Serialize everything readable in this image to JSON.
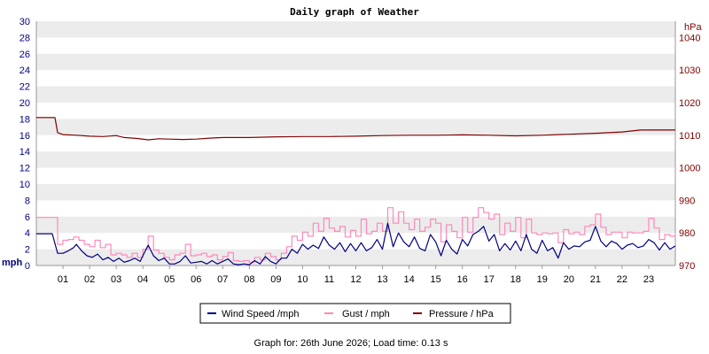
{
  "chart_data": {
    "type": "line",
    "title": "Daily graph of Weather",
    "left_axis": {
      "unit": "mph",
      "ylim": [
        0,
        30
      ],
      "ticks": [
        0,
        2,
        4,
        6,
        8,
        10,
        12,
        14,
        16,
        18,
        20,
        22,
        24,
        26,
        28,
        30
      ]
    },
    "right_axis": {
      "unit": "hPa",
      "ylim": [
        970,
        1045
      ],
      "ticks": [
        970,
        980,
        990,
        1000,
        1010,
        1020,
        1030,
        1040
      ]
    },
    "x_axis": {
      "range_hours": [
        0,
        24
      ],
      "tick_labels": [
        "01",
        "02",
        "03",
        "04",
        "05",
        "06",
        "07",
        "08",
        "09",
        "10",
        "11",
        "12",
        "13",
        "14",
        "15",
        "16",
        "17",
        "18",
        "19",
        "20",
        "21",
        "22",
        "23"
      ]
    },
    "grid": "alternating horizontal bands",
    "legend_position": "bottom",
    "series": [
      {
        "name": "Wind Speed /mph",
        "axis": "left",
        "color": "#000080",
        "points": [
          [
            0,
            3.9
          ],
          [
            0.6,
            3.9
          ],
          [
            0.8,
            1.5
          ],
          [
            1.0,
            1.5
          ],
          [
            1.2,
            1.8
          ],
          [
            1.4,
            2.2
          ],
          [
            1.5,
            2.6
          ],
          [
            1.7,
            1.8
          ],
          [
            1.9,
            1.2
          ],
          [
            2.1,
            1.0
          ],
          [
            2.3,
            1.4
          ],
          [
            2.5,
            0.7
          ],
          [
            2.7,
            1.0
          ],
          [
            2.9,
            0.5
          ],
          [
            3.1,
            0.9
          ],
          [
            3.3,
            0.4
          ],
          [
            3.5,
            0.6
          ],
          [
            3.7,
            0.9
          ],
          [
            3.9,
            0.5
          ],
          [
            4.0,
            1.2
          ],
          [
            4.2,
            2.5
          ],
          [
            4.4,
            1.2
          ],
          [
            4.6,
            0.6
          ],
          [
            4.8,
            0.9
          ],
          [
            5.0,
            0.2
          ],
          [
            5.2,
            0.2
          ],
          [
            5.4,
            0.5
          ],
          [
            5.6,
            1.2
          ],
          [
            5.8,
            0.3
          ],
          [
            6.0,
            0.4
          ],
          [
            6.2,
            0.5
          ],
          [
            6.4,
            0.2
          ],
          [
            6.6,
            0.6
          ],
          [
            6.8,
            0.2
          ],
          [
            7.0,
            0.5
          ],
          [
            7.2,
            0.8
          ],
          [
            7.4,
            0.2
          ],
          [
            7.6,
            0.1
          ],
          [
            7.8,
            0.2
          ],
          [
            8.0,
            0.1
          ],
          [
            8.2,
            0.6
          ],
          [
            8.4,
            0.2
          ],
          [
            8.6,
            1.1
          ],
          [
            8.8,
            0.5
          ],
          [
            9.0,
            0.2
          ],
          [
            9.2,
            0.9
          ],
          [
            9.4,
            0.9
          ],
          [
            9.6,
            2.0
          ],
          [
            9.8,
            1.5
          ],
          [
            10.0,
            2.6
          ],
          [
            10.2,
            2.0
          ],
          [
            10.4,
            2.5
          ],
          [
            10.6,
            2.1
          ],
          [
            10.8,
            3.5
          ],
          [
            11.0,
            2.5
          ],
          [
            11.2,
            2.0
          ],
          [
            11.4,
            2.8
          ],
          [
            11.6,
            1.7
          ],
          [
            11.8,
            2.7
          ],
          [
            12.0,
            1.8
          ],
          [
            12.2,
            2.8
          ],
          [
            12.4,
            1.8
          ],
          [
            12.6,
            2.2
          ],
          [
            12.8,
            3.2
          ],
          [
            13.0,
            2.0
          ],
          [
            13.2,
            5.2
          ],
          [
            13.4,
            2.3
          ],
          [
            13.6,
            4.0
          ],
          [
            13.8,
            2.9
          ],
          [
            14.0,
            2.3
          ],
          [
            14.2,
            3.5
          ],
          [
            14.4,
            2.1
          ],
          [
            14.6,
            1.8
          ],
          [
            14.8,
            3.8
          ],
          [
            15.0,
            2.9
          ],
          [
            15.2,
            1.2
          ],
          [
            15.4,
            3.1
          ],
          [
            15.6,
            2.0
          ],
          [
            15.8,
            1.4
          ],
          [
            16.0,
            3.2
          ],
          [
            16.2,
            2.4
          ],
          [
            16.4,
            3.8
          ],
          [
            16.6,
            4.2
          ],
          [
            16.8,
            4.8
          ],
          [
            17.0,
            3.0
          ],
          [
            17.2,
            3.8
          ],
          [
            17.4,
            1.8
          ],
          [
            17.6,
            2.7
          ],
          [
            17.8,
            1.9
          ],
          [
            18.0,
            3.0
          ],
          [
            18.2,
            1.8
          ],
          [
            18.4,
            3.8
          ],
          [
            18.6,
            2.0
          ],
          [
            18.8,
            1.5
          ],
          [
            19.0,
            3.1
          ],
          [
            19.2,
            1.8
          ],
          [
            19.4,
            2.2
          ],
          [
            19.6,
            0.9
          ],
          [
            19.8,
            2.8
          ],
          [
            20.0,
            2.0
          ],
          [
            20.2,
            2.4
          ],
          [
            20.4,
            2.3
          ],
          [
            20.6,
            2.9
          ],
          [
            20.8,
            3.1
          ],
          [
            21.0,
            4.8
          ],
          [
            21.2,
            3.0
          ],
          [
            21.4,
            2.3
          ],
          [
            21.6,
            3.0
          ],
          [
            21.8,
            2.7
          ],
          [
            22.0,
            2.0
          ],
          [
            22.2,
            2.5
          ],
          [
            22.4,
            2.7
          ],
          [
            22.6,
            2.2
          ],
          [
            22.8,
            2.4
          ],
          [
            23.0,
            3.2
          ],
          [
            23.2,
            2.8
          ],
          [
            23.4,
            1.9
          ],
          [
            23.6,
            2.8
          ],
          [
            23.8,
            2.0
          ],
          [
            24.0,
            2.4
          ]
        ]
      },
      {
        "name": "Gust / mph",
        "axis": "left",
        "color": "#ff88bb",
        "points": [
          [
            0,
            5.9
          ],
          [
            0.6,
            5.9
          ],
          [
            0.8,
            2.6
          ],
          [
            1.0,
            3.1
          ],
          [
            1.2,
            3.2
          ],
          [
            1.4,
            3.5
          ],
          [
            1.6,
            3.1
          ],
          [
            1.8,
            2.6
          ],
          [
            2.0,
            2.3
          ],
          [
            2.2,
            3.1
          ],
          [
            2.4,
            2.2
          ],
          [
            2.6,
            2.6
          ],
          [
            2.8,
            1.3
          ],
          [
            3.0,
            1.5
          ],
          [
            3.2,
            1.3
          ],
          [
            3.4,
            1.0
          ],
          [
            3.6,
            1.5
          ],
          [
            3.8,
            1.0
          ],
          [
            4.0,
            2.0
          ],
          [
            4.2,
            3.6
          ],
          [
            4.4,
            1.9
          ],
          [
            4.6,
            1.5
          ],
          [
            4.8,
            1.0
          ],
          [
            5.0,
            0.7
          ],
          [
            5.2,
            1.3
          ],
          [
            5.4,
            1.5
          ],
          [
            5.6,
            2.6
          ],
          [
            5.8,
            1.2
          ],
          [
            6.0,
            1.3
          ],
          [
            6.2,
            1.5
          ],
          [
            6.4,
            1.1
          ],
          [
            6.6,
            1.3
          ],
          [
            6.8,
            0.7
          ],
          [
            7.0,
            1.1
          ],
          [
            7.2,
            1.6
          ],
          [
            7.4,
            0.6
          ],
          [
            7.6,
            0.5
          ],
          [
            7.8,
            0.6
          ],
          [
            8.0,
            0.4
          ],
          [
            8.2,
            1.0
          ],
          [
            8.4,
            0.7
          ],
          [
            8.6,
            1.5
          ],
          [
            8.8,
            1.1
          ],
          [
            9.0,
            0.7
          ],
          [
            9.2,
            1.5
          ],
          [
            9.4,
            2.3
          ],
          [
            9.6,
            3.6
          ],
          [
            9.8,
            3.1
          ],
          [
            10.0,
            4.1
          ],
          [
            10.2,
            3.6
          ],
          [
            10.4,
            5.2
          ],
          [
            10.6,
            4.2
          ],
          [
            10.8,
            5.8
          ],
          [
            11.0,
            4.6
          ],
          [
            11.2,
            4.2
          ],
          [
            11.4,
            4.8
          ],
          [
            11.6,
            3.5
          ],
          [
            11.8,
            4.3
          ],
          [
            12.0,
            3.6
          ],
          [
            12.2,
            5.7
          ],
          [
            12.4,
            3.9
          ],
          [
            12.6,
            4.2
          ],
          [
            12.8,
            5.2
          ],
          [
            13.0,
            4.2
          ],
          [
            13.2,
            7.1
          ],
          [
            13.4,
            5.2
          ],
          [
            13.6,
            6.6
          ],
          [
            13.8,
            5.2
          ],
          [
            14.0,
            4.4
          ],
          [
            14.2,
            5.7
          ],
          [
            14.4,
            4.2
          ],
          [
            14.6,
            4.7
          ],
          [
            14.8,
            5.7
          ],
          [
            15.0,
            5.2
          ],
          [
            15.2,
            2.9
          ],
          [
            15.4,
            5.0
          ],
          [
            15.6,
            4.2
          ],
          [
            15.8,
            3.4
          ],
          [
            16.0,
            5.9
          ],
          [
            16.2,
            4.1
          ],
          [
            16.4,
            5.9
          ],
          [
            16.6,
            7.1
          ],
          [
            16.8,
            6.5
          ],
          [
            17.0,
            5.7
          ],
          [
            17.2,
            6.3
          ],
          [
            17.4,
            3.8
          ],
          [
            17.6,
            5.2
          ],
          [
            17.8,
            4.2
          ],
          [
            18.0,
            5.9
          ],
          [
            18.2,
            3.4
          ],
          [
            18.4,
            5.7
          ],
          [
            18.6,
            4.0
          ],
          [
            18.8,
            3.8
          ],
          [
            19.0,
            4.0
          ],
          [
            19.2,
            3.9
          ],
          [
            19.4,
            4.0
          ],
          [
            19.6,
            2.8
          ],
          [
            19.8,
            4.4
          ],
          [
            20.0,
            3.9
          ],
          [
            20.2,
            4.1
          ],
          [
            20.4,
            3.8
          ],
          [
            20.6,
            4.8
          ],
          [
            20.8,
            5.0
          ],
          [
            21.0,
            6.3
          ],
          [
            21.2,
            4.7
          ],
          [
            21.4,
            3.8
          ],
          [
            21.6,
            4.1
          ],
          [
            21.8,
            4.1
          ],
          [
            22.0,
            3.4
          ],
          [
            22.2,
            4.1
          ],
          [
            22.4,
            4.0
          ],
          [
            22.6,
            4.0
          ],
          [
            22.8,
            4.2
          ],
          [
            23.0,
            5.8
          ],
          [
            23.2,
            4.6
          ],
          [
            23.4,
            3.2
          ],
          [
            23.6,
            3.8
          ],
          [
            23.8,
            3.6
          ],
          [
            24.0,
            4.0
          ]
        ]
      },
      {
        "name": "Pressure / hPa",
        "axis": "right",
        "color": "#800000",
        "points": [
          [
            0,
            1015.4
          ],
          [
            0.7,
            1015.4
          ],
          [
            0.8,
            1010.8
          ],
          [
            1.0,
            1010.2
          ],
          [
            1.5,
            1010.0
          ],
          [
            2.0,
            1009.7
          ],
          [
            2.5,
            1009.6
          ],
          [
            3.0,
            1009.9
          ],
          [
            3.3,
            1009.3
          ],
          [
            3.8,
            1009.0
          ],
          [
            4.2,
            1008.6
          ],
          [
            4.6,
            1008.9
          ],
          [
            5.0,
            1008.8
          ],
          [
            5.5,
            1008.7
          ],
          [
            6.0,
            1008.8
          ],
          [
            6.5,
            1009.1
          ],
          [
            7.0,
            1009.3
          ],
          [
            8.0,
            1009.3
          ],
          [
            9.0,
            1009.5
          ],
          [
            10.0,
            1009.6
          ],
          [
            11.0,
            1009.6
          ],
          [
            12.0,
            1009.7
          ],
          [
            13.0,
            1009.9
          ],
          [
            14.0,
            1010.0
          ],
          [
            15.0,
            1010.0
          ],
          [
            16.0,
            1010.1
          ],
          [
            17.0,
            1010.0
          ],
          [
            18.0,
            1009.8
          ],
          [
            19.0,
            1010.0
          ],
          [
            20.0,
            1010.3
          ],
          [
            21.0,
            1010.6
          ],
          [
            22.0,
            1011.0
          ],
          [
            22.7,
            1011.6
          ],
          [
            24.0,
            1011.6
          ]
        ]
      }
    ]
  },
  "footer": {
    "text": "Graph for: 26th June 2026; Load time: 0.13 s"
  }
}
